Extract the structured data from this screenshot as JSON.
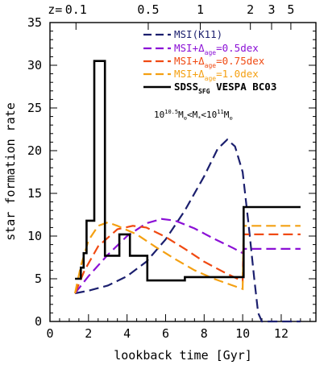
{
  "chart_data": {
    "type": "line",
    "xlabel": "lookback time [Gyr]",
    "ylabel": "star formation rate",
    "xlim": [
      0,
      13.8
    ],
    "ylim": [
      0,
      35
    ],
    "x_ticks": [
      0,
      2,
      4,
      6,
      8,
      10,
      12
    ],
    "y_ticks": [
      0,
      5,
      10,
      15,
      20,
      25,
      30,
      35
    ],
    "top_axis": {
      "label_prefix": "z=",
      "ticks": [
        {
          "z": "0.1",
          "lookback": 1.35
        },
        {
          "z": "0.5",
          "lookback": 5.1
        },
        {
          "z": "1",
          "lookback": 7.8
        },
        {
          "z": "2",
          "lookback": 10.4
        },
        {
          "z": "3",
          "lookback": 11.5
        },
        {
          "z": "5",
          "lookback": 12.5
        }
      ]
    },
    "annotation": {
      "text_parts": [
        "10",
        "10.5",
        "M",
        "⊙",
        "<M",
        "*",
        "<10",
        "11",
        "M",
        "⊙"
      ]
    },
    "legend": {
      "placement": "top-right"
    },
    "series": [
      {
        "name_parts": [
          "MSI(K11)"
        ],
        "color": "#1b1f6e",
        "style": "dashed",
        "points": [
          [
            1.3,
            3.3
          ],
          [
            2,
            3.6
          ],
          [
            3,
            4.2
          ],
          [
            4,
            5.3
          ],
          [
            5,
            7.0
          ],
          [
            6,
            9.6
          ],
          [
            7,
            13.0
          ],
          [
            8,
            17.0
          ],
          [
            8.7,
            20.2
          ],
          [
            9.2,
            21.3
          ],
          [
            9.6,
            20.5
          ],
          [
            10,
            17.5
          ],
          [
            10.3,
            11.5
          ],
          [
            10.6,
            5.0
          ],
          [
            10.8,
            1.0
          ],
          [
            11,
            0
          ],
          [
            13,
            0
          ]
        ]
      },
      {
        "name_parts": [
          "MSI+Δ",
          "age",
          "=0.5dex"
        ],
        "color": "#8b10d6",
        "style": "dashed",
        "points": [
          [
            1.3,
            3.3
          ],
          [
            2,
            5.3
          ],
          [
            3,
            7.8
          ],
          [
            4,
            10.0
          ],
          [
            5,
            11.5
          ],
          [
            5.8,
            12.0
          ],
          [
            6.5,
            11.8
          ],
          [
            7.5,
            10.9
          ],
          [
            8.5,
            9.7
          ],
          [
            9.5,
            8.6
          ],
          [
            10,
            8.0
          ],
          [
            10.05,
            8.5
          ],
          [
            13,
            8.5
          ]
        ]
      },
      {
        "name_parts": [
          "MSI+Δ",
          "age",
          "=0.75dex"
        ],
        "color": "#f04a12",
        "style": "dashed",
        "points": [
          [
            1.3,
            3.3
          ],
          [
            1.8,
            6.0
          ],
          [
            2.5,
            8.8
          ],
          [
            3.5,
            10.8
          ],
          [
            4.3,
            11.2
          ],
          [
            5,
            11.0
          ],
          [
            6,
            9.9
          ],
          [
            7,
            8.5
          ],
          [
            8,
            7.0
          ],
          [
            9,
            5.8
          ],
          [
            10,
            4.7
          ],
          [
            10.05,
            10.2
          ],
          [
            13,
            10.2
          ]
        ]
      },
      {
        "name_parts": [
          "MSI+Δ",
          "age",
          "=1.0dex"
        ],
        "color": "#f4a012",
        "style": "dashed",
        "points": [
          [
            1.3,
            3.3
          ],
          [
            1.6,
            6.5
          ],
          [
            2,
            9.5
          ],
          [
            2.5,
            11.2
          ],
          [
            3,
            11.6
          ],
          [
            3.5,
            11.2
          ],
          [
            4.5,
            10.2
          ],
          [
            5.5,
            8.7
          ],
          [
            6.5,
            7.3
          ],
          [
            7.5,
            6.0
          ],
          [
            8.5,
            5.0
          ],
          [
            9.5,
            4.2
          ],
          [
            10,
            3.8
          ],
          [
            10.05,
            11.2
          ],
          [
            13,
            11.2
          ]
        ]
      },
      {
        "name_parts": [
          "SDSS",
          "SFG",
          " VESPA BC03"
        ],
        "color": "#000000",
        "style": "solid",
        "points": [
          [
            1.3,
            5.0
          ],
          [
            1.6,
            5.0
          ],
          [
            1.6,
            6.3
          ],
          [
            1.75,
            6.3
          ],
          [
            1.75,
            8.0
          ],
          [
            1.9,
            8.0
          ],
          [
            1.9,
            11.8
          ],
          [
            2.3,
            11.8
          ],
          [
            2.3,
            30.5
          ],
          [
            2.85,
            30.5
          ],
          [
            2.85,
            7.7
          ],
          [
            3.6,
            7.7
          ],
          [
            3.6,
            10.2
          ],
          [
            4.15,
            10.2
          ],
          [
            4.15,
            7.7
          ],
          [
            5.05,
            7.7
          ],
          [
            5.05,
            4.8
          ],
          [
            7,
            4.8
          ],
          [
            7,
            5.2
          ],
          [
            10.05,
            5.2
          ],
          [
            10.05,
            13.4
          ],
          [
            13,
            13.4
          ]
        ]
      }
    ]
  }
}
